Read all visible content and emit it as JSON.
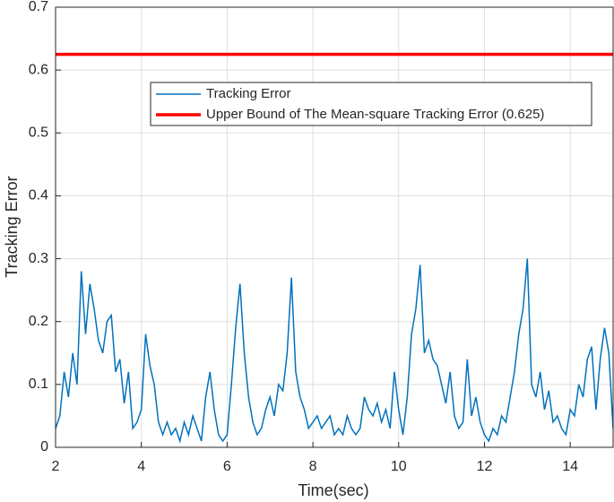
{
  "chart_data": {
    "type": "line",
    "xlabel": "Time(sec)",
    "ylabel": "Tracking Error",
    "xlim": [
      2,
      15
    ],
    "ylim": [
      0,
      0.7
    ],
    "xticks": [
      2,
      4,
      6,
      8,
      10,
      12,
      14
    ],
    "yticks": [
      0,
      0.1,
      0.2,
      0.3,
      0.4,
      0.5,
      0.6,
      0.7
    ],
    "grid": true,
    "series": [
      {
        "name": "Tracking Error",
        "color": "#0072bd",
        "x": [
          2.0,
          2.1,
          2.2,
          2.3,
          2.4,
          2.5,
          2.6,
          2.7,
          2.8,
          2.9,
          3.0,
          3.1,
          3.2,
          3.3,
          3.4,
          3.5,
          3.6,
          3.7,
          3.8,
          3.9,
          4.0,
          4.1,
          4.2,
          4.3,
          4.4,
          4.5,
          4.6,
          4.7,
          4.8,
          4.9,
          5.0,
          5.1,
          5.2,
          5.3,
          5.4,
          5.5,
          5.6,
          5.7,
          5.8,
          5.9,
          6.0,
          6.1,
          6.2,
          6.3,
          6.4,
          6.5,
          6.6,
          6.7,
          6.8,
          6.9,
          7.0,
          7.1,
          7.2,
          7.3,
          7.4,
          7.5,
          7.6,
          7.7,
          7.8,
          7.9,
          8.0,
          8.1,
          8.2,
          8.3,
          8.4,
          8.5,
          8.6,
          8.7,
          8.8,
          8.9,
          9.0,
          9.1,
          9.2,
          9.3,
          9.4,
          9.5,
          9.6,
          9.7,
          9.8,
          9.9,
          10.0,
          10.1,
          10.2,
          10.3,
          10.4,
          10.5,
          10.6,
          10.7,
          10.8,
          10.9,
          11.0,
          11.1,
          11.2,
          11.3,
          11.4,
          11.5,
          11.6,
          11.7,
          11.8,
          11.9,
          12.0,
          12.1,
          12.2,
          12.3,
          12.4,
          12.5,
          12.6,
          12.7,
          12.8,
          12.9,
          13.0,
          13.1,
          13.2,
          13.3,
          13.4,
          13.5,
          13.6,
          13.7,
          13.8,
          13.9,
          14.0,
          14.1,
          14.2,
          14.3,
          14.4,
          14.5,
          14.6,
          14.7,
          14.8,
          14.9,
          15.0
        ],
        "values": [
          0.03,
          0.05,
          0.12,
          0.08,
          0.15,
          0.1,
          0.28,
          0.18,
          0.26,
          0.22,
          0.17,
          0.15,
          0.2,
          0.21,
          0.12,
          0.14,
          0.07,
          0.12,
          0.03,
          0.04,
          0.06,
          0.18,
          0.13,
          0.1,
          0.04,
          0.02,
          0.04,
          0.02,
          0.03,
          0.01,
          0.04,
          0.02,
          0.05,
          0.03,
          0.01,
          0.08,
          0.12,
          0.06,
          0.02,
          0.01,
          0.02,
          0.1,
          0.19,
          0.26,
          0.15,
          0.08,
          0.04,
          0.02,
          0.03,
          0.06,
          0.08,
          0.05,
          0.1,
          0.09,
          0.15,
          0.27,
          0.12,
          0.08,
          0.06,
          0.03,
          0.04,
          0.05,
          0.03,
          0.04,
          0.05,
          0.02,
          0.03,
          0.02,
          0.05,
          0.03,
          0.02,
          0.03,
          0.08,
          0.06,
          0.05,
          0.07,
          0.04,
          0.06,
          0.03,
          0.12,
          0.06,
          0.02,
          0.08,
          0.18,
          0.22,
          0.29,
          0.15,
          0.17,
          0.14,
          0.13,
          0.1,
          0.07,
          0.12,
          0.05,
          0.03,
          0.04,
          0.14,
          0.05,
          0.08,
          0.04,
          0.02,
          0.01,
          0.03,
          0.02,
          0.05,
          0.04,
          0.08,
          0.12,
          0.18,
          0.22,
          0.3,
          0.1,
          0.08,
          0.12,
          0.06,
          0.09,
          0.04,
          0.05,
          0.03,
          0.02,
          0.06,
          0.05,
          0.1,
          0.08,
          0.14,
          0.16,
          0.06,
          0.14,
          0.19,
          0.15,
          0.03
        ]
      },
      {
        "name": "Upper Bound of The Mean-square Tracking Error (0.625)",
        "color": "#ff0000",
        "x": [
          2,
          15
        ],
        "values": [
          0.625,
          0.625
        ]
      }
    ]
  }
}
